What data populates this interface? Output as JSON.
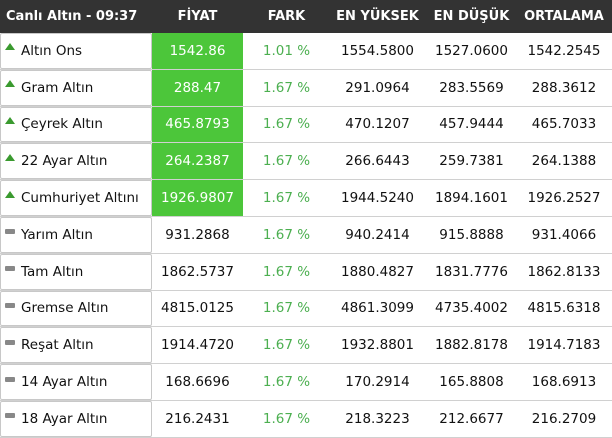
{
  "header": {
    "title": "Canlı Altın - 09:37",
    "columns": [
      "FİYAT",
      "FARK",
      "EN YÜKSEK",
      "EN DÜŞÜK",
      "ORTALAMA"
    ]
  },
  "table": {
    "rows": [
      [
        "Altın Ons",
        "1542.86",
        "1.01 %",
        "1554.5800",
        "1527.0600",
        "1542.2545"
      ],
      [
        "Gram Altın",
        "288.47",
        "1.67 %",
        "291.0964",
        "283.5569",
        "288.3612"
      ],
      [
        "Çeyrek Altın",
        "465.8793",
        "1.67 %",
        "470.1207",
        "457.9444",
        "465.7033"
      ],
      [
        "22 Ayar Altın",
        "264.2387",
        "1.67 %",
        "266.6443",
        "259.7381",
        "264.1388"
      ],
      [
        "Cumhuriyet Altını",
        "1926.9807",
        "1.67 %",
        "1944.5240",
        "1894.1601",
        "1926.2527"
      ],
      [
        "Yarım Altın",
        "931.2868",
        "1.67 %",
        "940.2414",
        "915.8888",
        "931.4066"
      ],
      [
        "Tam Altın",
        "1862.5737",
        "1.67 %",
        "1880.4827",
        "1831.7776",
        "1862.8133"
      ],
      [
        "Gremse Altın",
        "4815.0125",
        "1.67 %",
        "4861.3099",
        "4735.4002",
        "4815.6318"
      ],
      [
        "Reşat Altın",
        "1914.4720",
        "1.67 %",
        "1932.8801",
        "1882.8178",
        "1914.7183"
      ],
      [
        "14 Ayar Altın",
        "168.6696",
        "1.67 %",
        "170.2914",
        "165.8808",
        "168.6913"
      ],
      [
        "18 Ayar Altın",
        "216.2431",
        "1.67 %",
        "218.3223",
        "212.6677",
        "216.2709"
      ]
    ]
  }
}
